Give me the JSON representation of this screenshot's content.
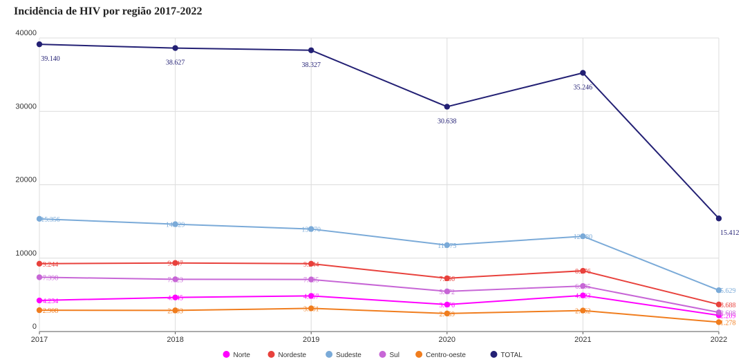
{
  "chart_data": {
    "type": "line",
    "title": "Incidência de HIV por região 2017-2022",
    "xlabel": "",
    "ylabel": "",
    "categories": [
      "2017",
      "2018",
      "2019",
      "2020",
      "2021",
      "2022"
    ],
    "ylim": [
      0,
      40000
    ],
    "yticks": [
      "0",
      "10000",
      "20000",
      "30000",
      "40000"
    ],
    "grid": true,
    "legend_position": "bottom",
    "series": [
      {
        "name": "Norte",
        "color": "#ff00ff",
        "values": [
          4234,
          4645,
          4857,
          3676,
          4923,
          2209
        ],
        "labels": [
          "4.234",
          "4.645",
          "4.857",
          "3.676",
          "4.923",
          "2.209"
        ]
      },
      {
        "name": "Nordeste",
        "color": "#e8413c",
        "values": [
          9244,
          9347,
          9244,
          7256,
          8276,
          3688
        ],
        "labels": [
          "9.244",
          "9.347",
          "9.244",
          "7.256",
          "8.276",
          "3.688"
        ]
      },
      {
        "name": "Sudeste",
        "color": "#7aaad8",
        "values": [
          15356,
          14629,
          13970,
          11775,
          12980,
          5629
        ],
        "labels": [
          "15.356",
          "14.629",
          "13.970",
          "11.775",
          "12.980",
          "5.629"
        ]
      },
      {
        "name": "Sul",
        "color": "#c766d6",
        "values": [
          7398,
          7123,
          7095,
          5472,
          6205,
          2608
        ],
        "labels": [
          "7.398",
          "7.123",
          "7.095",
          "5.472",
          "6.205",
          "2.608"
        ]
      },
      {
        "name": "Centro-oeste",
        "color": "#f07d1e",
        "values": [
          2908,
          2883,
          3161,
          2459,
          2862,
          1278
        ],
        "labels": [
          "2.908",
          "2.883",
          "3.161",
          "2.459",
          "2.862",
          "1.278"
        ]
      },
      {
        "name": "TOTAL",
        "color": "#232074",
        "values": [
          39140,
          38627,
          38327,
          30638,
          35246,
          15412
        ],
        "labels": [
          "39.140",
          "38.627",
          "38.327",
          "30.638",
          "35.246",
          "15.412"
        ]
      }
    ]
  }
}
